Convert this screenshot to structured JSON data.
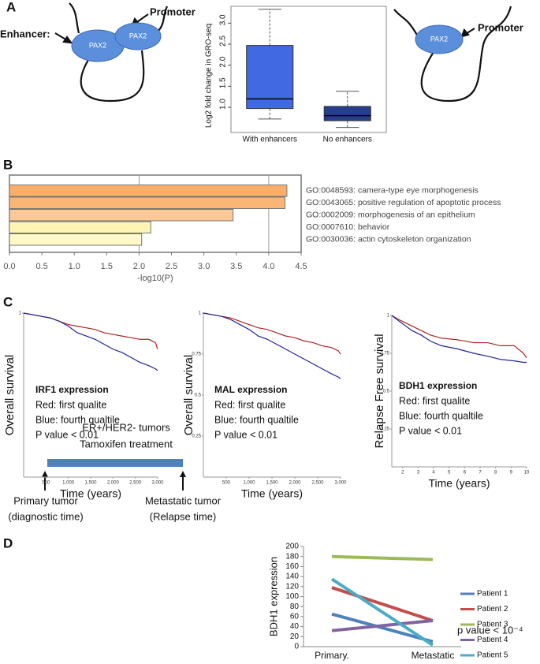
{
  "panels": {
    "a": "A",
    "b": "B",
    "c": "C",
    "d": "D"
  },
  "diagram_a": {
    "enhancer_label": "Enhancer:",
    "pax2_left": "PAX2",
    "pax2_right": "PAX2",
    "promoter_left": "Promoter",
    "pax2_alone": "PAX2",
    "promoter_right": "Promoter"
  },
  "diagram_d": {
    "title_1": "ER+/HER2- tumors",
    "title_2": "Tamoxifen treatment",
    "start_1": "Primary tumor",
    "start_2": "(diagnostic time)",
    "end_1": "Metastatic tumor",
    "end_2": "(Relapse time)"
  },
  "chart_data": [
    {
      "type": "box",
      "ylabel": "Log2 fold change in GRO-seq",
      "categories": [
        "With enhancers",
        "No enhancers"
      ],
      "colors": [
        "#4169e1",
        "#253f8e"
      ],
      "boxes": [
        {
          "whisker_low": 0.72,
          "q1": 0.97,
          "median": 1.2,
          "q3": 2.47,
          "whisker_high": 3.33
        },
        {
          "whisker_low": 0.52,
          "q1": 0.68,
          "median": 0.8,
          "q3": 1.02,
          "whisker_high": 1.38
        }
      ],
      "ylim": [
        0.4,
        3.4
      ],
      "yticks": [
        {
          "value": 1,
          "label": "1.0"
        },
        1.5,
        {
          "value": 2,
          "label": "2.0"
        },
        2.5,
        {
          "value": 3,
          "label": "3.0"
        }
      ]
    },
    {
      "type": "hbar",
      "xlabel": "-log10(P)",
      "categories": [
        "GO:0048593: camera-type eye morphogenesis",
        "GO:0043065: positive regulation of apoptotic process",
        "GO:0002009: morphogenesis of an epithelium",
        "GO:0007610: behavior",
        "GO:0030036: actin cytoskeleton organization"
      ],
      "values": [
        4.28,
        4.25,
        3.45,
        2.18,
        2.04
      ],
      "colors": [
        "#fbae6a",
        "#fbb676",
        "#fcc994",
        "#fef5b4",
        "#fff9c6"
      ],
      "xlim": [
        0,
        4.5
      ],
      "xticks": [
        {
          "value": 0,
          "label": "0.0"
        },
        0.5,
        {
          "value": 1,
          "label": "1.0"
        },
        1.5,
        {
          "value": 2,
          "label": "2.0"
        },
        2.5,
        {
          "value": 3,
          "label": "3.0"
        },
        3.5,
        {
          "value": 4,
          "label": "4.0"
        },
        4.5
      ],
      "gridlines": [
        2,
        4
      ]
    },
    {
      "type": "survival",
      "ylabel": "Overall survival",
      "xlabel": "Time (years)",
      "annotations": [
        "IRF1 expression",
        "Red: first qualite",
        "Blue: fourth qualtile",
        "P value < 0.01"
      ],
      "xlim": [
        0,
        3000
      ],
      "xticks": [
        500,
        {
          "value": 1000,
          "label": "1,000"
        },
        {
          "value": 1500,
          "label": "1,500"
        },
        {
          "value": 2000,
          "label": "2,000"
        },
        {
          "value": 2500,
          "label": "2,500"
        },
        {
          "value": 3000,
          "label": "3,000"
        }
      ],
      "ylim": [
        0,
        1
      ],
      "yticks": [
        1
      ],
      "series": [
        {
          "color": "#b22222",
          "x": [
            0,
            200,
            400,
            600,
            800,
            1000,
            1200,
            1400,
            1600,
            1800,
            2000,
            2200,
            2400,
            2600,
            2800,
            2950,
            3000
          ],
          "values": [
            1,
            0.99,
            0.98,
            0.97,
            0.95,
            0.93,
            0.92,
            0.91,
            0.9,
            0.88,
            0.87,
            0.86,
            0.85,
            0.84,
            0.84,
            0.82,
            0.78
          ]
        },
        {
          "color": "#22229a",
          "x": [
            0,
            200,
            400,
            600,
            800,
            1000,
            1200,
            1400,
            1600,
            1800,
            2000,
            2200,
            2400,
            2600,
            2800,
            2950,
            3000
          ],
          "values": [
            1,
            0.99,
            0.98,
            0.97,
            0.95,
            0.92,
            0.88,
            0.86,
            0.84,
            0.81,
            0.78,
            0.76,
            0.73,
            0.7,
            0.68,
            0.66,
            0.65
          ]
        }
      ]
    },
    {
      "type": "survival",
      "ylabel": "Overall survival",
      "xlabel": "Time (years)",
      "annotations": [
        "MAL expression",
        "Red: first qualite",
        "Blue: fourth qualtile",
        "P value < 0.01"
      ],
      "xlim": [
        0,
        3000
      ],
      "xticks": [
        500,
        {
          "value": 1000,
          "label": "1,000"
        },
        {
          "value": 1500,
          "label": "1,500"
        },
        {
          "value": 2000,
          "label": "2,000"
        },
        {
          "value": 2500,
          "label": "2,500"
        },
        {
          "value": 3000,
          "label": "3,000"
        }
      ],
      "ylim": [
        0,
        1
      ],
      "yticks": [
        1,
        0.75,
        0.5,
        0.25
      ],
      "series": [
        {
          "color": "#b22222",
          "x": [
            0,
            200,
            400,
            600,
            800,
            1000,
            1200,
            1400,
            1600,
            1800,
            2000,
            2200,
            2400,
            2600,
            2800,
            2950,
            3000
          ],
          "values": [
            1,
            0.99,
            0.98,
            0.97,
            0.95,
            0.93,
            0.91,
            0.9,
            0.88,
            0.86,
            0.85,
            0.83,
            0.82,
            0.8,
            0.79,
            0.77,
            0.75
          ]
        },
        {
          "color": "#22229a",
          "x": [
            0,
            200,
            400,
            600,
            800,
            1000,
            1200,
            1400,
            1600,
            1800,
            2000,
            2200,
            2400,
            2600,
            2800,
            2950,
            3000
          ],
          "values": [
            1,
            0.99,
            0.98,
            0.96,
            0.93,
            0.9,
            0.86,
            0.84,
            0.81,
            0.78,
            0.75,
            0.72,
            0.69,
            0.66,
            0.63,
            0.61,
            0.6
          ]
        }
      ]
    },
    {
      "type": "survival",
      "ylabel": "Relapse Free survival",
      "xlabel": "Time (years)",
      "annotations": [
        "BDH1 expression",
        "Red: first qualite",
        "Blue: fourth qualtile",
        "P value < 0.01"
      ],
      "xlim": [
        1.3,
        10
      ],
      "xticks": [
        2,
        3,
        4,
        5,
        6,
        7,
        8,
        9,
        10
      ],
      "ylim": [
        0,
        1
      ],
      "yticks": [
        1,
        0.75,
        0.5,
        0.25
      ],
      "series": [
        {
          "color": "#b22222",
          "x": [
            1.3,
            1.8,
            2.2,
            2.6,
            3.2,
            3.8,
            4.5,
            5.5,
            6.6,
            7.5,
            8.3,
            9.2,
            9.8,
            10
          ],
          "values": [
            1,
            0.97,
            0.95,
            0.93,
            0.9,
            0.87,
            0.85,
            0.84,
            0.82,
            0.82,
            0.8,
            0.8,
            0.75,
            0.72
          ]
        },
        {
          "color": "#22229a",
          "x": [
            1.3,
            1.8,
            2.2,
            2.6,
            3.2,
            3.8,
            4.5,
            5.5,
            6.6,
            7.5,
            8.3,
            9.2,
            9.8,
            10
          ],
          "values": [
            1,
            0.96,
            0.93,
            0.9,
            0.87,
            0.83,
            0.8,
            0.78,
            0.75,
            0.73,
            0.71,
            0.7,
            0.69,
            0.69
          ]
        }
      ]
    },
    {
      "type": "line",
      "ylabel": "BDH1 expression",
      "categories": [
        "Primary.",
        "Metastatic"
      ],
      "ylim": [
        0,
        200
      ],
      "yticks": [
        0,
        20,
        40,
        60,
        80,
        100,
        120,
        140,
        160,
        180,
        200
      ],
      "series": [
        {
          "name": "Patient 1",
          "color": "#4f81bd",
          "values": [
            65,
            10
          ]
        },
        {
          "name": "Patient 2",
          "color": "#c0504d",
          "values": [
            118,
            52
          ]
        },
        {
          "name": "Patient 3",
          "color": "#9bbb59",
          "values": [
            180,
            174
          ]
        },
        {
          "name": "Patient 4",
          "color": "#8064a2",
          "values": [
            32,
            52
          ]
        },
        {
          "name": "Patient 5",
          "color": "#4bacc6",
          "values": [
            135,
            3
          ]
        }
      ],
      "annotation": "p value < 10⁻⁴"
    }
  ]
}
